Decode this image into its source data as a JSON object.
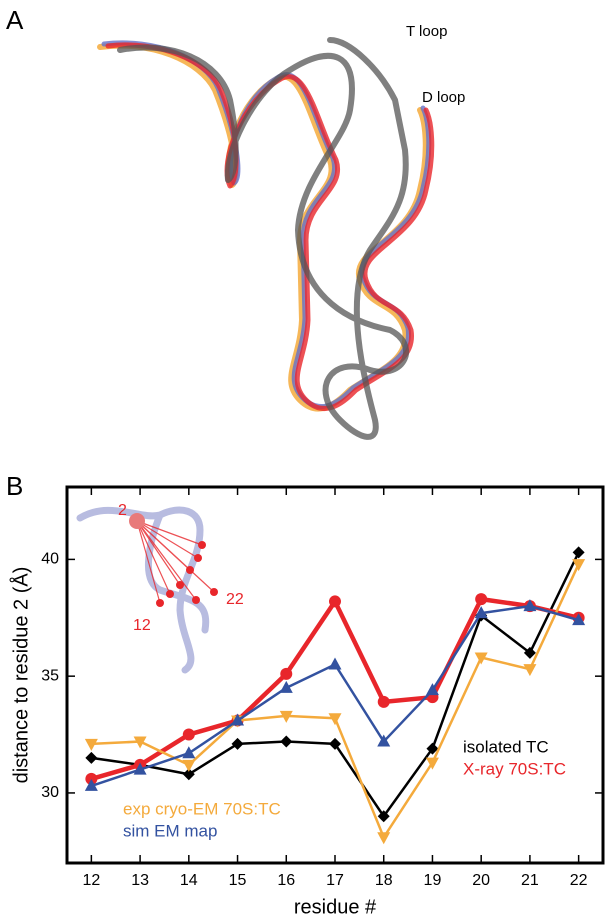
{
  "panel_labels": [
    "A",
    "B"
  ],
  "panel_a_annotations": [
    "T loop",
    "D loop"
  ],
  "chart_data": {
    "type": "line",
    "xlabel": "residue #",
    "ylabel": "distance to residue 2 (Å)",
    "x": [
      12,
      13,
      14,
      15,
      16,
      17,
      18,
      19,
      20,
      21,
      22
    ],
    "xlim": [
      11.5,
      22.5
    ],
    "xticks": [
      12,
      13,
      14,
      15,
      16,
      17,
      18,
      19,
      20,
      21,
      22
    ],
    "ylim": [
      27,
      43.1
    ],
    "yticks": [
      30,
      35,
      40
    ],
    "inset_labels": [
      "2",
      "12",
      "22"
    ],
    "series": [
      {
        "name": "isolated TC",
        "color": "#000000",
        "marker": "diamond",
        "values": [
          31.5,
          31.2,
          30.8,
          32.1,
          32.2,
          32.1,
          29.0,
          31.9,
          37.6,
          36.0,
          40.3
        ]
      },
      {
        "name": "X-ray 70S:TC",
        "color": "#e8262b",
        "marker": "circle",
        "values": [
          30.6,
          31.2,
          32.5,
          33.1,
          35.1,
          38.2,
          33.9,
          34.1,
          38.3,
          38.0,
          37.5
        ]
      },
      {
        "name": "exp cryo-EM 70S:TC",
        "color": "#f4aa3c",
        "marker": "triangle-down",
        "values": [
          32.1,
          32.2,
          31.2,
          33.1,
          33.3,
          33.2,
          28.1,
          31.3,
          35.8,
          35.3,
          39.8
        ]
      },
      {
        "name": "sim EM map",
        "color": "#3352a0",
        "marker": "triangle-up",
        "values": [
          30.3,
          31.0,
          31.7,
          33.1,
          34.5,
          35.5,
          32.2,
          34.4,
          37.7,
          38.0,
          37.4
        ]
      }
    ]
  }
}
